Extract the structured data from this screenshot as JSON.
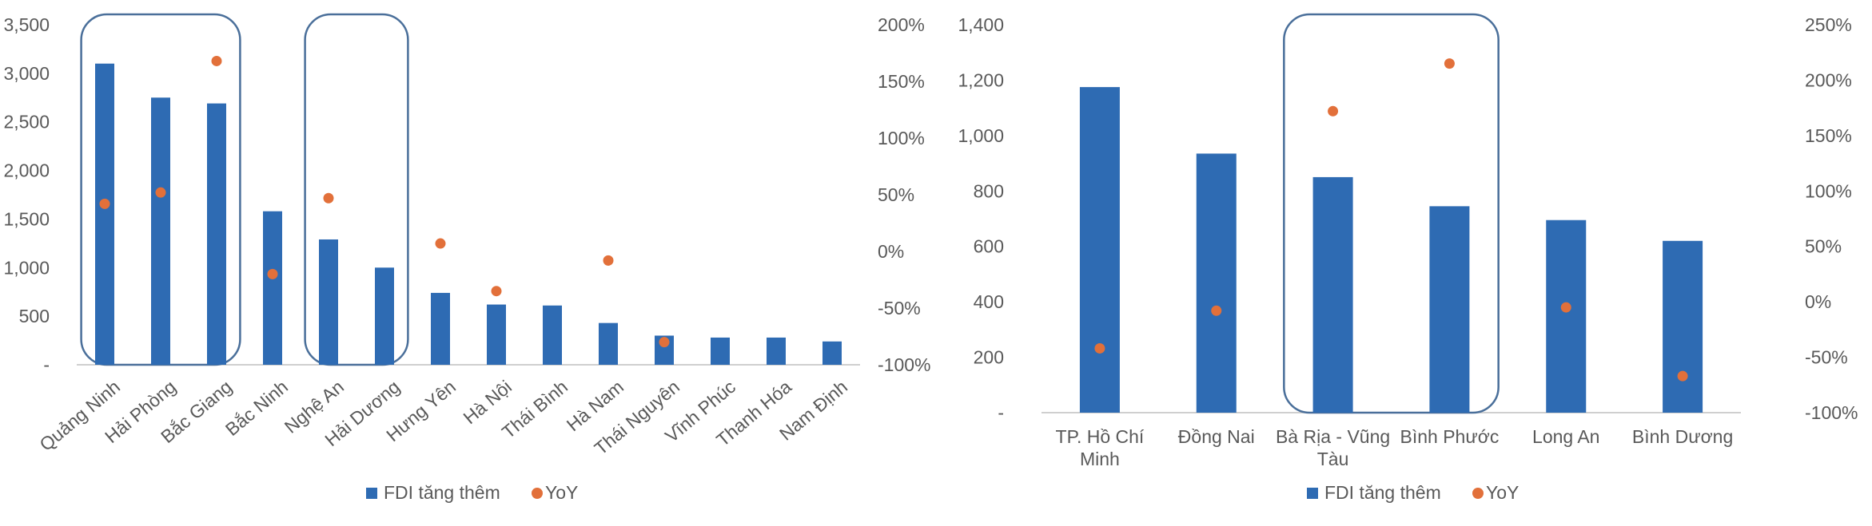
{
  "colors": {
    "bar": "#2E6BB3",
    "dot": "#E2703A",
    "axis": "#BFBFBF",
    "highlight": "#4A6F9A",
    "text": "#595959"
  },
  "legend": {
    "bar_label": "FDI tăng thêm",
    "dot_label": "YoY"
  },
  "chart_data": [
    {
      "type": "bar",
      "categories": [
        "Quảng Ninh",
        "Hải Phòng",
        "Bắc Giang",
        "Bắc Ninh",
        "Nghệ An",
        "Hải Dương",
        "Hưng Yên",
        "Hà Nội",
        "Thái Bình",
        "Hà Nam",
        "Thái Nguyên",
        "Vĩnh Phúc",
        "Thanh Hóa",
        "Nam Định"
      ],
      "series": [
        {
          "name": "FDI tăng thêm",
          "type": "bar",
          "axis": "left",
          "values": [
            3100,
            2750,
            2690,
            1580,
            1290,
            1000,
            740,
            620,
            610,
            430,
            300,
            280,
            280,
            240
          ]
        },
        {
          "name": "YoY",
          "type": "scatter",
          "axis": "right",
          "unit": "%",
          "values": [
            42,
            52,
            168,
            -20,
            47,
            null,
            7,
            -35,
            null,
            -8,
            -80,
            null,
            null,
            null
          ]
        }
      ],
      "y_left": {
        "min": 0,
        "max": 3500,
        "step": 500,
        "ticks": [
          "-",
          "500",
          "1,000",
          "1,500",
          "2,000",
          "2,500",
          "3,000",
          "3,500"
        ]
      },
      "y_right": {
        "min": -100,
        "max": 200,
        "step": 50,
        "ticks": [
          "-100%",
          "-50%",
          "0%",
          "50%",
          "100%",
          "150%",
          "200%"
        ]
      },
      "highlight_groups": [
        [
          0,
          2
        ],
        [
          4,
          5
        ]
      ],
      "xlabel_rotation": -40,
      "legend_position": "bottom"
    },
    {
      "type": "bar",
      "categories": [
        [
          "TP. Hồ Chí",
          "Minh"
        ],
        [
          "Đồng Nai"
        ],
        [
          "Bà Rịa - Vũng",
          "Tàu"
        ],
        [
          "Bình Phước"
        ],
        [
          "Long An"
        ],
        [
          "Bình Dương"
        ]
      ],
      "series": [
        {
          "name": "FDI tăng thêm",
          "type": "bar",
          "axis": "left",
          "values": [
            1175,
            935,
            850,
            745,
            695,
            620
          ]
        },
        {
          "name": "YoY",
          "type": "scatter",
          "axis": "right",
          "unit": "%",
          "values": [
            -42,
            -8,
            172,
            215,
            -5,
            -67
          ]
        }
      ],
      "y_left": {
        "min": 0,
        "max": 1400,
        "step": 200,
        "ticks": [
          "-",
          "200",
          "400",
          "600",
          "800",
          "1,000",
          "1,200",
          "1,400"
        ]
      },
      "y_right": {
        "min": -100,
        "max": 250,
        "step": 50,
        "ticks": [
          "-100%",
          "-50%",
          "0%",
          "50%",
          "100%",
          "150%",
          "200%",
          "250%"
        ]
      },
      "highlight_groups": [
        [
          2,
          3
        ]
      ],
      "xlabel_rotation": 0,
      "legend_position": "bottom"
    }
  ]
}
